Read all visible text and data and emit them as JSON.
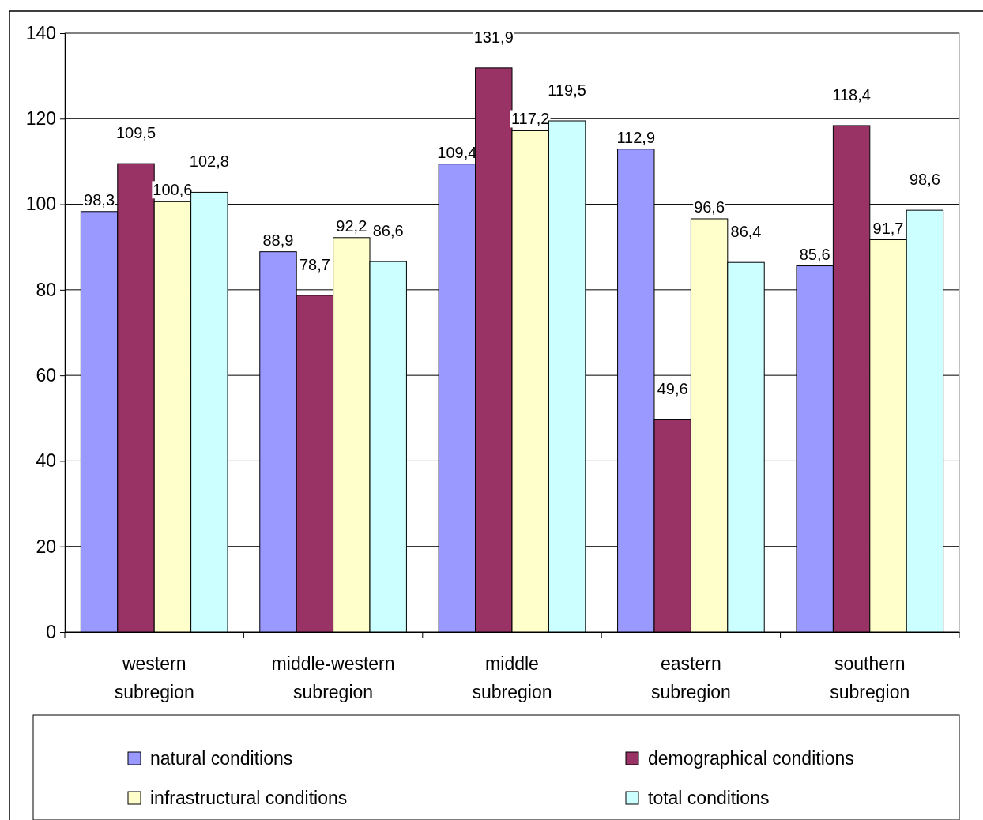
{
  "chart_data": {
    "type": "bar",
    "categories": [
      "western subregion",
      "middle-western subregion",
      "middle subregion",
      "eastern subregion",
      "southern subregion"
    ],
    "series": [
      {
        "name": "natural conditions",
        "color": "#9999ff",
        "values": [
          98.3,
          88.9,
          109.4,
          112.9,
          85.6
        ],
        "value_labels": [
          "98,3",
          "88,9",
          "109,4",
          "112,9",
          "85,6"
        ]
      },
      {
        "name": "demographical conditions",
        "color": "#993366",
        "values": [
          109.5,
          78.7,
          131.9,
          49.6,
          118.4
        ],
        "value_labels": [
          "109,5",
          "78,7",
          "131,9",
          "49,6",
          "118,4"
        ]
      },
      {
        "name": "infrastructural conditions",
        "color": "#ffffcc",
        "values": [
          100.6,
          92.2,
          117.2,
          96.6,
          91.7
        ],
        "value_labels": [
          "100,6",
          "92,2",
          "117,2",
          "96,6",
          "91,7"
        ]
      },
      {
        "name": "total conditions",
        "color": "#ccffff",
        "values": [
          102.8,
          86.6,
          119.5,
          86.4,
          98.6
        ],
        "value_labels": [
          "102,8",
          "86,6",
          "119,5",
          "86,4",
          "98,6"
        ]
      }
    ],
    "ylim": [
      0,
      140
    ],
    "yticks": [
      0,
      20,
      40,
      60,
      80,
      100,
      120,
      140
    ],
    "grid": "y",
    "legend": "bottom"
  }
}
